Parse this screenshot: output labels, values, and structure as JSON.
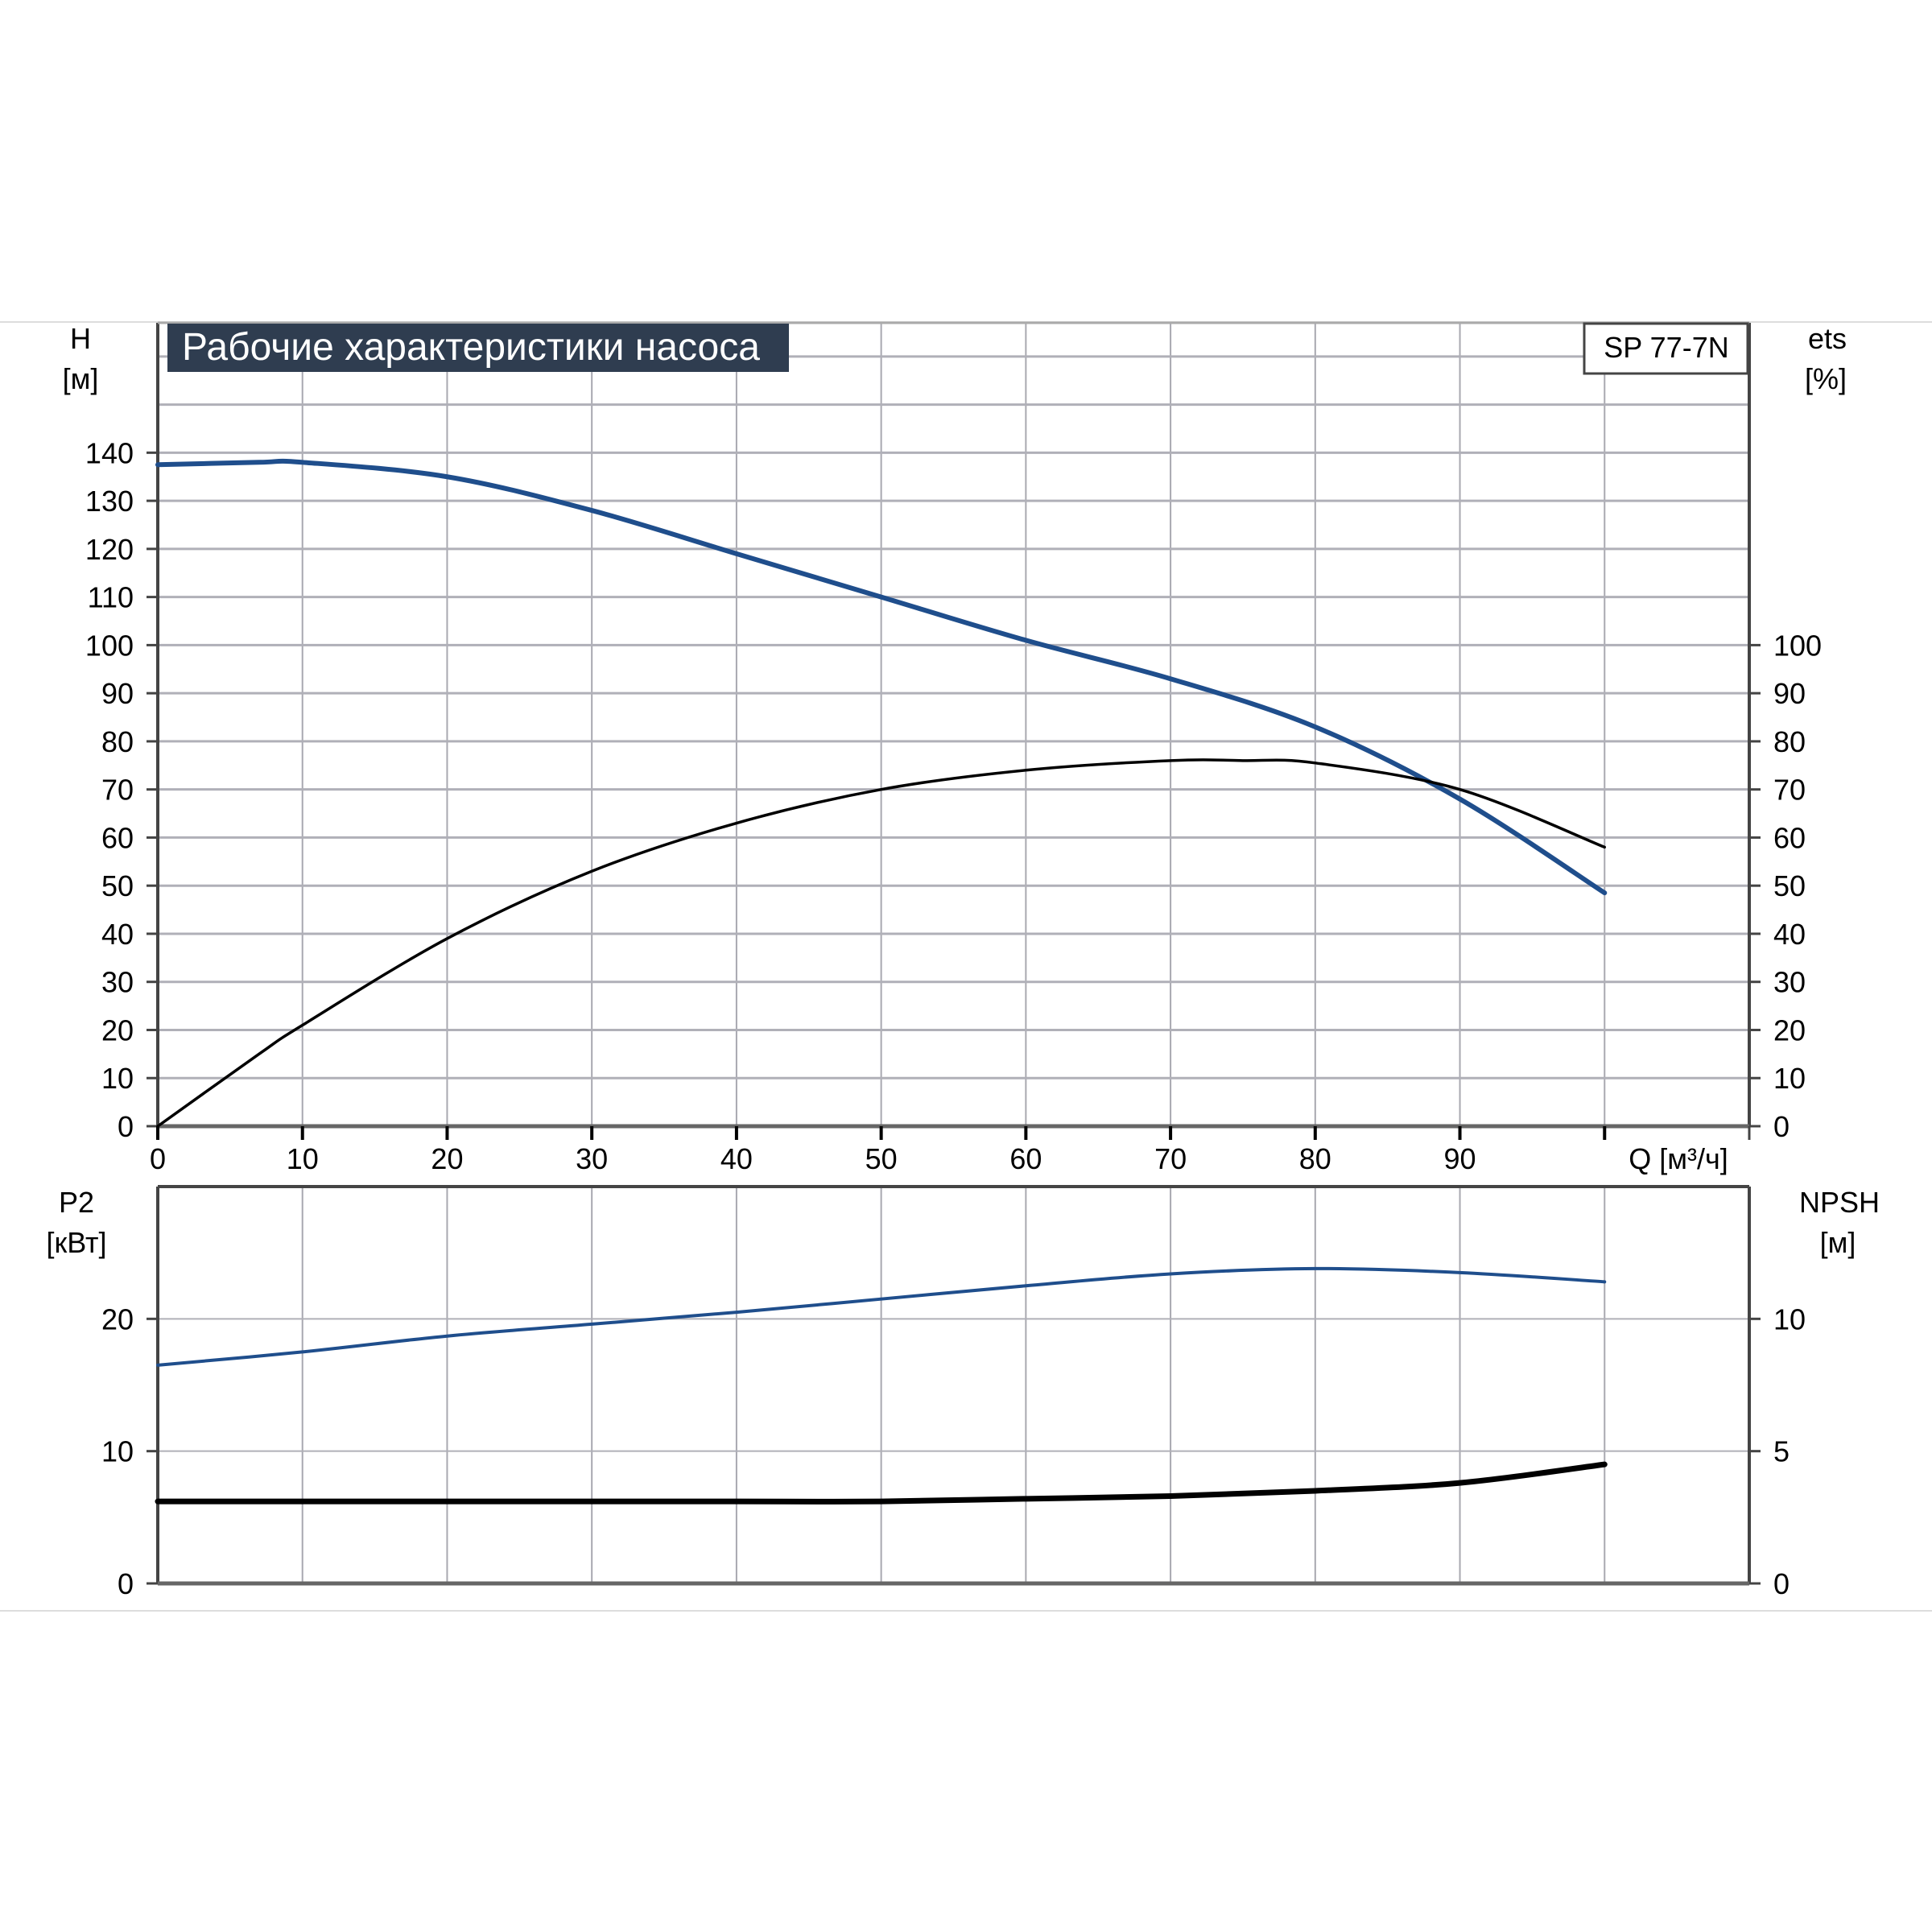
{
  "chart_data": [
    {
      "type": "line",
      "title": "Рабочие характеристики насоса",
      "model_label": "SP 77-7N",
      "xlabel": "Q [м³/ч]",
      "ylabel_left": [
        "H",
        "[м]"
      ],
      "ylabel_right": [
        "ets",
        "[%]"
      ],
      "xlim": [
        0,
        110
      ],
      "ylim_left": [
        0,
        167
      ],
      "ylim_right": [
        0,
        167
      ],
      "x_ticks": [
        0,
        10,
        20,
        30,
        40,
        50,
        60,
        70,
        80,
        90
      ],
      "y_ticks_left": [
        0,
        10,
        20,
        30,
        40,
        50,
        60,
        70,
        80,
        90,
        100,
        110,
        120,
        130,
        140
      ],
      "y_ticks_right": [
        0,
        10,
        20,
        30,
        40,
        50,
        60,
        70,
        80,
        90,
        100
      ],
      "grid": true,
      "series": [
        {
          "axis": "left",
          "color": "#1f4e8c",
          "x": [
            0,
            7,
            10,
            20,
            30,
            40,
            50,
            60,
            70,
            80,
            90,
            100
          ],
          "y": [
            137.5,
            138,
            138,
            135,
            128,
            119,
            110,
            101,
            93,
            83,
            68,
            48.5
          ]
        },
        {
          "axis": "right",
          "color": "#000000",
          "x": [
            0,
            7,
            10,
            20,
            30,
            40,
            50,
            60,
            70,
            75,
            80,
            90,
            100
          ],
          "y": [
            0,
            15,
            21,
            39,
            53,
            63,
            70,
            74,
            76,
            76,
            75.5,
            70,
            58
          ]
        }
      ]
    },
    {
      "type": "line",
      "ylabel_left": [
        "P2",
        "[кВт]"
      ],
      "ylabel_right": [
        "NPSH",
        "[м]"
      ],
      "xlim": [
        0,
        110
      ],
      "ylim_left": [
        0,
        30
      ],
      "ylim_right": [
        0,
        15
      ],
      "y_ticks_left": [
        0,
        10,
        20
      ],
      "y_ticks_right": [
        0,
        5,
        10
      ],
      "grid": true,
      "series": [
        {
          "axis": "left",
          "color": "#1f4e8c",
          "x": [
            0,
            10,
            20,
            30,
            40,
            50,
            60,
            70,
            80,
            90,
            100
          ],
          "y": [
            16.5,
            17.5,
            18.7,
            19.6,
            20.5,
            21.5,
            22.5,
            23.4,
            23.8,
            23.5,
            22.8
          ]
        },
        {
          "axis": "right",
          "color": "#000000",
          "x": [
            0,
            10,
            20,
            30,
            40,
            50,
            60,
            70,
            80,
            90,
            100
          ],
          "y": [
            3.1,
            3.1,
            3.1,
            3.1,
            3.1,
            3.1,
            3.2,
            3.3,
            3.5,
            3.8,
            4.5
          ]
        }
      ]
    }
  ]
}
